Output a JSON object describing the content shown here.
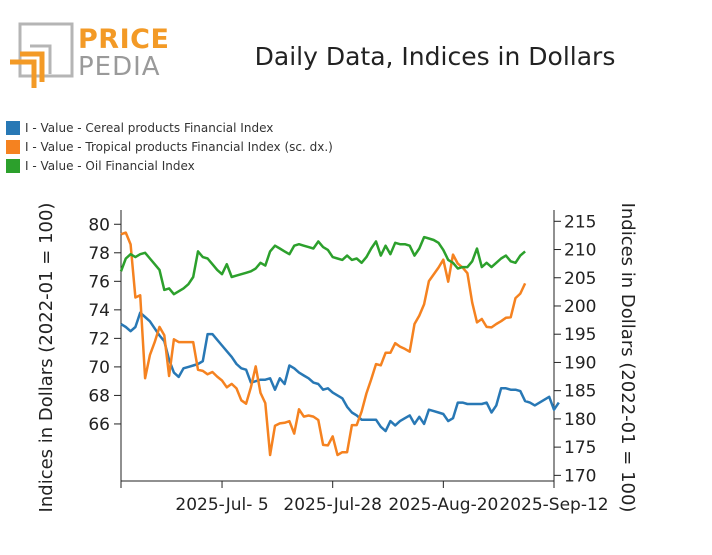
{
  "logo": {
    "top": "PRICE",
    "bottom": "PEDIA",
    "colors": {
      "orange": "#f39a26",
      "gray": "#b5b5b5"
    }
  },
  "chart_data": {
    "type": "line",
    "title": "Daily Data, Indices in Dollars",
    "ylabel_left": "Indices in Dollars (2022-01 = 100)",
    "ylabel_right": "Indices in Dollars (2022-01 = 100)",
    "x_ticks": [
      "2025-Jul- 5",
      "2025-Jul-28",
      "2025-Aug-20",
      "2025-Sep-12"
    ],
    "x_tick_dates": [
      "2025-07-05",
      "2025-07-28",
      "2025-08-20",
      "2025-09-12"
    ],
    "x_range": [
      "2025-06-14",
      "2025-09-12"
    ],
    "ylim_left": [
      62,
      81
    ],
    "yticks_left": [
      66,
      68,
      70,
      72,
      74,
      76,
      78,
      80
    ],
    "ylim_right": [
      169,
      217
    ],
    "yticks_right": [
      170,
      175,
      180,
      185,
      190,
      195,
      200,
      205,
      210,
      215
    ],
    "grid": false,
    "legend_position": "top-left",
    "series": [
      {
        "name": "I - Value - Cereal products Financial Index",
        "axis": "left",
        "color": "#2878b5",
        "points": [
          [
            "2025-06-14",
            73.0
          ],
          [
            "2025-06-15",
            72.8
          ],
          [
            "2025-06-16",
            72.5
          ],
          [
            "2025-06-17",
            72.8
          ],
          [
            "2025-06-18",
            73.8
          ],
          [
            "2025-06-19",
            73.5
          ],
          [
            "2025-06-20",
            73.2
          ],
          [
            "2025-06-21",
            72.7
          ],
          [
            "2025-06-22",
            72.2
          ],
          [
            "2025-06-23",
            71.8
          ],
          [
            "2025-06-24",
            70.5
          ],
          [
            "2025-06-25",
            69.6
          ],
          [
            "2025-06-26",
            69.3
          ],
          [
            "2025-06-27",
            69.9
          ],
          [
            "2025-06-28",
            70.0
          ],
          [
            "2025-06-29",
            70.1
          ],
          [
            "2025-06-30",
            70.2
          ],
          [
            "2025-07-01",
            70.4
          ],
          [
            "2025-07-02",
            72.3
          ],
          [
            "2025-07-03",
            72.3
          ],
          [
            "2025-07-04",
            71.9
          ],
          [
            "2025-07-05",
            71.5
          ],
          [
            "2025-07-06",
            71.1
          ],
          [
            "2025-07-07",
            70.7
          ],
          [
            "2025-07-08",
            70.2
          ],
          [
            "2025-07-09",
            69.9
          ],
          [
            "2025-07-10",
            69.8
          ],
          [
            "2025-07-11",
            68.9
          ],
          [
            "2025-07-12",
            69.0
          ],
          [
            "2025-07-13",
            69.1
          ],
          [
            "2025-07-14",
            69.1
          ],
          [
            "2025-07-15",
            69.2
          ],
          [
            "2025-07-16",
            68.4
          ],
          [
            "2025-07-17",
            69.2
          ],
          [
            "2025-07-18",
            68.8
          ],
          [
            "2025-07-19",
            70.1
          ],
          [
            "2025-07-20",
            69.9
          ],
          [
            "2025-07-21",
            69.6
          ],
          [
            "2025-07-22",
            69.4
          ],
          [
            "2025-07-23",
            69.2
          ],
          [
            "2025-07-24",
            68.9
          ],
          [
            "2025-07-25",
            68.8
          ],
          [
            "2025-07-26",
            68.4
          ],
          [
            "2025-07-27",
            68.5
          ],
          [
            "2025-07-28",
            68.2
          ],
          [
            "2025-07-29",
            68.0
          ],
          [
            "2025-07-30",
            67.8
          ],
          [
            "2025-07-31",
            67.2
          ],
          [
            "2025-08-01",
            66.8
          ],
          [
            "2025-08-02",
            66.6
          ],
          [
            "2025-08-03",
            66.3
          ],
          [
            "2025-08-04",
            66.3
          ],
          [
            "2025-08-05",
            66.3
          ],
          [
            "2025-08-06",
            66.3
          ],
          [
            "2025-08-07",
            65.8
          ],
          [
            "2025-08-08",
            65.5
          ],
          [
            "2025-08-09",
            66.2
          ],
          [
            "2025-08-10",
            65.9
          ],
          [
            "2025-08-11",
            66.2
          ],
          [
            "2025-08-12",
            66.4
          ],
          [
            "2025-08-13",
            66.6
          ],
          [
            "2025-08-14",
            66.0
          ],
          [
            "2025-08-15",
            66.5
          ],
          [
            "2025-08-16",
            66.0
          ],
          [
            "2025-08-17",
            67.0
          ],
          [
            "2025-08-18",
            66.9
          ],
          [
            "2025-08-19",
            66.8
          ],
          [
            "2025-08-20",
            66.7
          ],
          [
            "2025-08-21",
            66.2
          ],
          [
            "2025-08-22",
            66.4
          ],
          [
            "2025-08-23",
            67.5
          ],
          [
            "2025-08-24",
            67.5
          ],
          [
            "2025-08-25",
            67.4
          ],
          [
            "2025-08-26",
            67.4
          ],
          [
            "2025-08-27",
            67.4
          ],
          [
            "2025-08-28",
            67.4
          ],
          [
            "2025-08-29",
            67.5
          ],
          [
            "2025-08-30",
            66.8
          ],
          [
            "2025-08-31",
            67.3
          ],
          [
            "2025-09-01",
            68.5
          ],
          [
            "2025-09-02",
            68.5
          ],
          [
            "2025-09-03",
            68.4
          ],
          [
            "2025-09-04",
            68.4
          ],
          [
            "2025-09-05",
            68.3
          ],
          [
            "2025-09-06",
            67.6
          ],
          [
            "2025-09-07",
            67.5
          ],
          [
            "2025-09-08",
            67.3
          ],
          [
            "2025-09-09",
            67.5
          ],
          [
            "2025-09-10",
            67.7
          ],
          [
            "2025-09-11",
            67.9
          ],
          [
            "2025-09-12",
            67.0
          ],
          [
            "2025-09-13",
            67.5
          ]
        ]
      },
      {
        "name": "I - Value - Tropical products Financial Index (sc. dx.)",
        "axis": "right",
        "color": "#f58220",
        "points": [
          [
            "2025-06-14",
            212.7
          ],
          [
            "2025-06-15",
            213.0
          ],
          [
            "2025-06-16",
            210.9
          ],
          [
            "2025-06-17",
            201.5
          ],
          [
            "2025-06-18",
            201.9
          ],
          [
            "2025-06-19",
            187.2
          ],
          [
            "2025-06-20",
            191.3
          ],
          [
            "2025-06-21",
            193.6
          ],
          [
            "2025-06-22",
            196.3
          ],
          [
            "2025-06-23",
            194.8
          ],
          [
            "2025-06-24",
            187.6
          ],
          [
            "2025-06-25",
            194.1
          ],
          [
            "2025-06-26",
            193.6
          ],
          [
            "2025-06-27",
            193.6
          ],
          [
            "2025-06-28",
            193.6
          ],
          [
            "2025-06-29",
            193.6
          ],
          [
            "2025-06-30",
            188.7
          ],
          [
            "2025-07-01",
            188.5
          ],
          [
            "2025-07-02",
            187.9
          ],
          [
            "2025-07-03",
            188.3
          ],
          [
            "2025-07-04",
            187.5
          ],
          [
            "2025-07-05",
            186.8
          ],
          [
            "2025-07-06",
            185.6
          ],
          [
            "2025-07-07",
            186.2
          ],
          [
            "2025-07-08",
            185.4
          ],
          [
            "2025-07-09",
            183.3
          ],
          [
            "2025-07-10",
            182.7
          ],
          [
            "2025-07-11",
            185.6
          ],
          [
            "2025-07-12",
            189.3
          ],
          [
            "2025-07-13",
            184.6
          ],
          [
            "2025-07-14",
            182.8
          ],
          [
            "2025-07-15",
            173.6
          ],
          [
            "2025-07-16",
            178.8
          ],
          [
            "2025-07-17",
            179.2
          ],
          [
            "2025-07-18",
            179.3
          ],
          [
            "2025-07-19",
            179.6
          ],
          [
            "2025-07-20",
            177.4
          ],
          [
            "2025-07-21",
            181.7
          ],
          [
            "2025-07-22",
            180.4
          ],
          [
            "2025-07-23",
            180.6
          ],
          [
            "2025-07-24",
            180.4
          ],
          [
            "2025-07-25",
            179.8
          ],
          [
            "2025-07-26",
            175.4
          ],
          [
            "2025-07-27",
            175.3
          ],
          [
            "2025-07-28",
            176.9
          ],
          [
            "2025-07-29",
            173.6
          ],
          [
            "2025-07-30",
            174.1
          ],
          [
            "2025-07-31",
            174.1
          ],
          [
            "2025-08-01",
            178.9
          ],
          [
            "2025-08-02",
            178.9
          ],
          [
            "2025-08-03",
            181.3
          ],
          [
            "2025-08-04",
            184.5
          ],
          [
            "2025-08-05",
            187.0
          ],
          [
            "2025-08-06",
            189.7
          ],
          [
            "2025-08-07",
            189.5
          ],
          [
            "2025-08-08",
            191.7
          ],
          [
            "2025-08-09",
            191.7
          ],
          [
            "2025-08-10",
            193.4
          ],
          [
            "2025-08-11",
            192.8
          ],
          [
            "2025-08-12",
            192.4
          ],
          [
            "2025-08-13",
            191.9
          ],
          [
            "2025-08-14",
            196.8
          ],
          [
            "2025-08-15",
            198.3
          ],
          [
            "2025-08-16",
            200.3
          ],
          [
            "2025-08-17",
            204.4
          ],
          [
            "2025-08-18",
            205.6
          ],
          [
            "2025-08-19",
            206.8
          ],
          [
            "2025-08-20",
            208.2
          ],
          [
            "2025-08-21",
            204.3
          ],
          [
            "2025-08-22",
            209.1
          ],
          [
            "2025-08-23",
            207.5
          ],
          [
            "2025-08-24",
            206.8
          ],
          [
            "2025-08-25",
            205.8
          ],
          [
            "2025-08-26",
            200.6
          ],
          [
            "2025-08-27",
            197.1
          ],
          [
            "2025-08-28",
            197.7
          ],
          [
            "2025-08-29",
            196.3
          ],
          [
            "2025-08-30",
            196.2
          ],
          [
            "2025-08-31",
            196.8
          ],
          [
            "2025-09-01",
            197.3
          ],
          [
            "2025-09-02",
            197.9
          ],
          [
            "2025-09-03",
            198.0
          ],
          [
            "2025-09-04",
            201.4
          ],
          [
            "2025-09-05",
            202.2
          ],
          [
            "2025-09-06",
            204.0
          ]
        ]
      },
      {
        "name": "I - Value - Oil Financial Index",
        "axis": "left",
        "color": "#2ca02c",
        "points": [
          [
            "2025-06-14",
            76.7
          ],
          [
            "2025-06-15",
            77.6
          ],
          [
            "2025-06-16",
            77.9
          ],
          [
            "2025-06-17",
            77.7
          ],
          [
            "2025-06-18",
            77.9
          ],
          [
            "2025-06-19",
            78.0
          ],
          [
            "2025-06-20",
            77.6
          ],
          [
            "2025-06-21",
            77.2
          ],
          [
            "2025-06-22",
            76.8
          ],
          [
            "2025-06-23",
            75.4
          ],
          [
            "2025-06-24",
            75.5
          ],
          [
            "2025-06-25",
            75.1
          ],
          [
            "2025-06-26",
            75.3
          ],
          [
            "2025-06-27",
            75.5
          ],
          [
            "2025-06-28",
            75.8
          ],
          [
            "2025-06-29",
            76.3
          ],
          [
            "2025-06-30",
            78.1
          ],
          [
            "2025-07-01",
            77.7
          ],
          [
            "2025-07-02",
            77.6
          ],
          [
            "2025-07-03",
            77.2
          ],
          [
            "2025-07-04",
            76.8
          ],
          [
            "2025-07-05",
            76.5
          ],
          [
            "2025-07-06",
            77.2
          ],
          [
            "2025-07-07",
            76.3
          ],
          [
            "2025-07-08",
            76.4
          ],
          [
            "2025-07-09",
            76.5
          ],
          [
            "2025-07-10",
            76.6
          ],
          [
            "2025-07-11",
            76.7
          ],
          [
            "2025-07-12",
            76.9
          ],
          [
            "2025-07-13",
            77.3
          ],
          [
            "2025-07-14",
            77.1
          ],
          [
            "2025-07-15",
            78.1
          ],
          [
            "2025-07-16",
            78.5
          ],
          [
            "2025-07-17",
            78.3
          ],
          [
            "2025-07-18",
            78.1
          ],
          [
            "2025-07-19",
            77.9
          ],
          [
            "2025-07-20",
            78.5
          ],
          [
            "2025-07-21",
            78.6
          ],
          [
            "2025-07-22",
            78.5
          ],
          [
            "2025-07-23",
            78.4
          ],
          [
            "2025-07-24",
            78.3
          ],
          [
            "2025-07-25",
            78.8
          ],
          [
            "2025-07-26",
            78.4
          ],
          [
            "2025-07-27",
            78.2
          ],
          [
            "2025-07-28",
            77.7
          ],
          [
            "2025-07-29",
            77.6
          ],
          [
            "2025-07-30",
            77.5
          ],
          [
            "2025-07-31",
            77.8
          ],
          [
            "2025-08-01",
            77.5
          ],
          [
            "2025-08-02",
            77.6
          ],
          [
            "2025-08-03",
            77.3
          ],
          [
            "2025-08-04",
            77.7
          ],
          [
            "2025-08-05",
            78.3
          ],
          [
            "2025-08-06",
            78.8
          ],
          [
            "2025-08-07",
            77.8
          ],
          [
            "2025-08-08",
            78.5
          ],
          [
            "2025-08-09",
            77.9
          ],
          [
            "2025-08-10",
            78.7
          ],
          [
            "2025-08-11",
            78.6
          ],
          [
            "2025-08-12",
            78.6
          ],
          [
            "2025-08-13",
            78.5
          ],
          [
            "2025-08-14",
            77.8
          ],
          [
            "2025-08-15",
            78.3
          ],
          [
            "2025-08-16",
            79.1
          ],
          [
            "2025-08-17",
            79.0
          ],
          [
            "2025-08-18",
            78.9
          ],
          [
            "2025-08-19",
            78.7
          ],
          [
            "2025-08-20",
            78.2
          ],
          [
            "2025-08-21",
            77.5
          ],
          [
            "2025-08-22",
            77.3
          ],
          [
            "2025-08-23",
            76.9
          ],
          [
            "2025-08-24",
            77.0
          ],
          [
            "2025-08-25",
            77.0
          ],
          [
            "2025-08-26",
            77.4
          ],
          [
            "2025-08-27",
            78.3
          ],
          [
            "2025-08-28",
            77.0
          ],
          [
            "2025-08-29",
            77.3
          ],
          [
            "2025-08-30",
            77.0
          ],
          [
            "2025-08-31",
            77.3
          ],
          [
            "2025-09-01",
            77.6
          ],
          [
            "2025-09-02",
            77.8
          ],
          [
            "2025-09-03",
            77.4
          ],
          [
            "2025-09-04",
            77.3
          ],
          [
            "2025-09-05",
            77.8
          ],
          [
            "2025-09-06",
            78.1
          ]
        ]
      }
    ]
  }
}
